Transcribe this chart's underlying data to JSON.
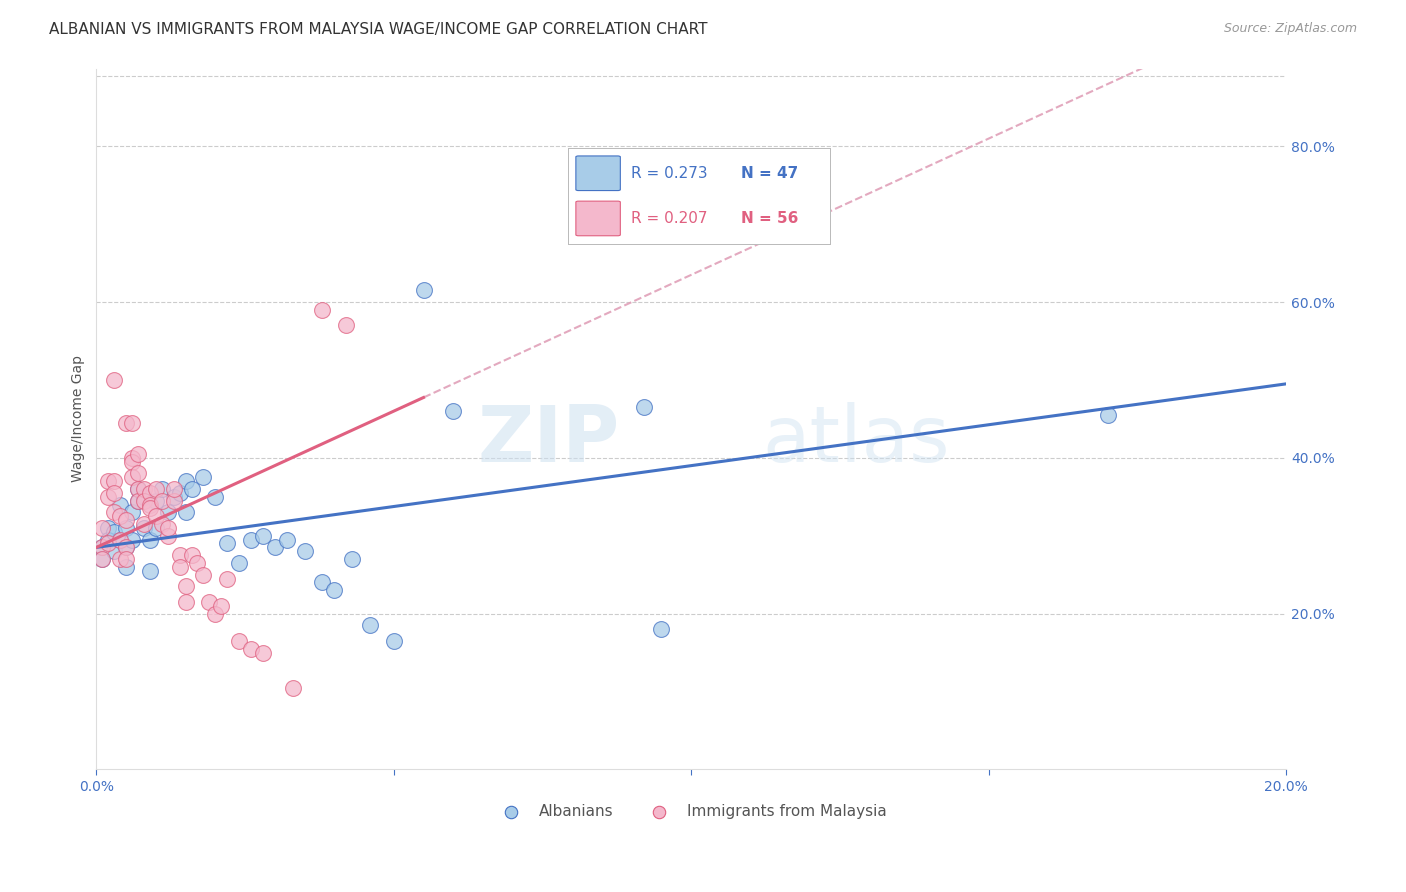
{
  "title": "ALBANIAN VS IMMIGRANTS FROM MALAYSIA WAGE/INCOME GAP CORRELATION CHART",
  "source": "Source: ZipAtlas.com",
  "ylabel": "Wage/Income Gap",
  "xlim": [
    0.0,
    0.2
  ],
  "ylim": [
    0.0,
    0.9
  ],
  "yticks_right": [
    0.2,
    0.4,
    0.6,
    0.8
  ],
  "ytick_labels_right": [
    "20.0%",
    "40.0%",
    "60.0%",
    "80.0%"
  ],
  "background_color": "#ffffff",
  "grid_color": "#cccccc",
  "legend_R1": "R = 0.273",
  "legend_N1": "N = 47",
  "legend_R2": "R = 0.207",
  "legend_N2": "N = 56",
  "color_albanian": "#a8cce8",
  "color_malaysia": "#f4b8cc",
  "color_albanian_line": "#4472c4",
  "color_malaysia_line": "#e06080",
  "color_dashed_line": "#e0a0b8",
  "albanians_x": [
    0.001,
    0.001,
    0.002,
    0.002,
    0.003,
    0.003,
    0.004,
    0.004,
    0.005,
    0.005,
    0.005,
    0.006,
    0.006,
    0.007,
    0.007,
    0.008,
    0.008,
    0.009,
    0.009,
    0.01,
    0.01,
    0.011,
    0.012,
    0.013,
    0.014,
    0.015,
    0.015,
    0.016,
    0.018,
    0.02,
    0.022,
    0.024,
    0.026,
    0.028,
    0.03,
    0.032,
    0.035,
    0.038,
    0.04,
    0.043,
    0.046,
    0.05,
    0.055,
    0.06,
    0.092,
    0.095,
    0.17
  ],
  "albanians_y": [
    0.285,
    0.27,
    0.31,
    0.295,
    0.305,
    0.28,
    0.295,
    0.34,
    0.285,
    0.31,
    0.26,
    0.295,
    0.33,
    0.345,
    0.36,
    0.35,
    0.31,
    0.295,
    0.255,
    0.345,
    0.31,
    0.36,
    0.33,
    0.35,
    0.355,
    0.37,
    0.33,
    0.36,
    0.375,
    0.35,
    0.29,
    0.265,
    0.295,
    0.3,
    0.285,
    0.295,
    0.28,
    0.24,
    0.23,
    0.27,
    0.185,
    0.165,
    0.615,
    0.46,
    0.465,
    0.18,
    0.455
  ],
  "malaysia_x": [
    0.001,
    0.001,
    0.001,
    0.002,
    0.002,
    0.002,
    0.003,
    0.003,
    0.003,
    0.003,
    0.004,
    0.004,
    0.004,
    0.005,
    0.005,
    0.005,
    0.005,
    0.006,
    0.006,
    0.006,
    0.006,
    0.007,
    0.007,
    0.007,
    0.007,
    0.008,
    0.008,
    0.008,
    0.009,
    0.009,
    0.009,
    0.01,
    0.01,
    0.011,
    0.011,
    0.012,
    0.012,
    0.013,
    0.013,
    0.014,
    0.014,
    0.015,
    0.015,
    0.016,
    0.017,
    0.018,
    0.019,
    0.02,
    0.021,
    0.022,
    0.024,
    0.026,
    0.028,
    0.033,
    0.038,
    0.042
  ],
  "malaysia_y": [
    0.285,
    0.31,
    0.27,
    0.37,
    0.35,
    0.29,
    0.37,
    0.355,
    0.33,
    0.5,
    0.325,
    0.295,
    0.27,
    0.32,
    0.285,
    0.27,
    0.445,
    0.445,
    0.4,
    0.395,
    0.375,
    0.405,
    0.38,
    0.36,
    0.345,
    0.36,
    0.345,
    0.315,
    0.355,
    0.34,
    0.335,
    0.325,
    0.36,
    0.315,
    0.345,
    0.3,
    0.31,
    0.345,
    0.36,
    0.275,
    0.26,
    0.235,
    0.215,
    0.275,
    0.265,
    0.25,
    0.215,
    0.2,
    0.21,
    0.245,
    0.165,
    0.155,
    0.15,
    0.105,
    0.59,
    0.57
  ],
  "watermark_zip": "ZIP",
  "watermark_atlas": "atlas",
  "title_fontsize": 11,
  "axis_label_fontsize": 10,
  "tick_fontsize": 10,
  "legend_fontsize": 12,
  "tick_color": "#4472c4"
}
